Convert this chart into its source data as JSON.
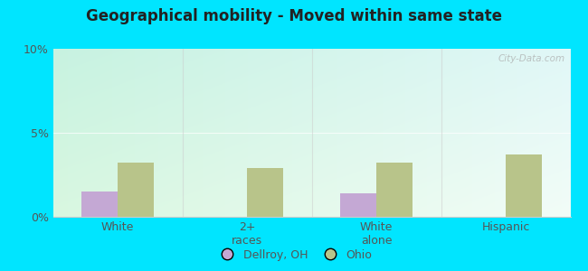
{
  "title": "Geographical mobility - Moved within same state",
  "categories": [
    "White",
    "2+\nraces",
    "White\nalone",
    "Hispanic"
  ],
  "dellroy_values": [
    1.5,
    0.0,
    1.4,
    0.0
  ],
  "ohio_values": [
    3.2,
    2.9,
    3.2,
    3.7
  ],
  "dellroy_color": "#c4a8d4",
  "ohio_color": "#b8c48a",
  "ylim": [
    0,
    10
  ],
  "yticks": [
    0,
    5,
    10
  ],
  "ytick_labels": [
    "0%",
    "5%",
    "10%"
  ],
  "bg_topleft": [
    0.78,
    0.95,
    0.88,
    1.0
  ],
  "bg_topright": [
    0.88,
    0.97,
    0.97,
    1.0
  ],
  "bg_bottomleft": [
    0.85,
    0.97,
    0.88,
    1.0
  ],
  "bg_bottomright": [
    0.95,
    0.99,
    0.97,
    1.0
  ],
  "outer_bg": "#00e5ff",
  "bar_width": 0.28,
  "legend_dellroy": "Dellroy, OH",
  "legend_ohio": "Ohio",
  "watermark": "City-Data.com",
  "divider_color": "#cccccc",
  "spine_color": "#cccccc"
}
